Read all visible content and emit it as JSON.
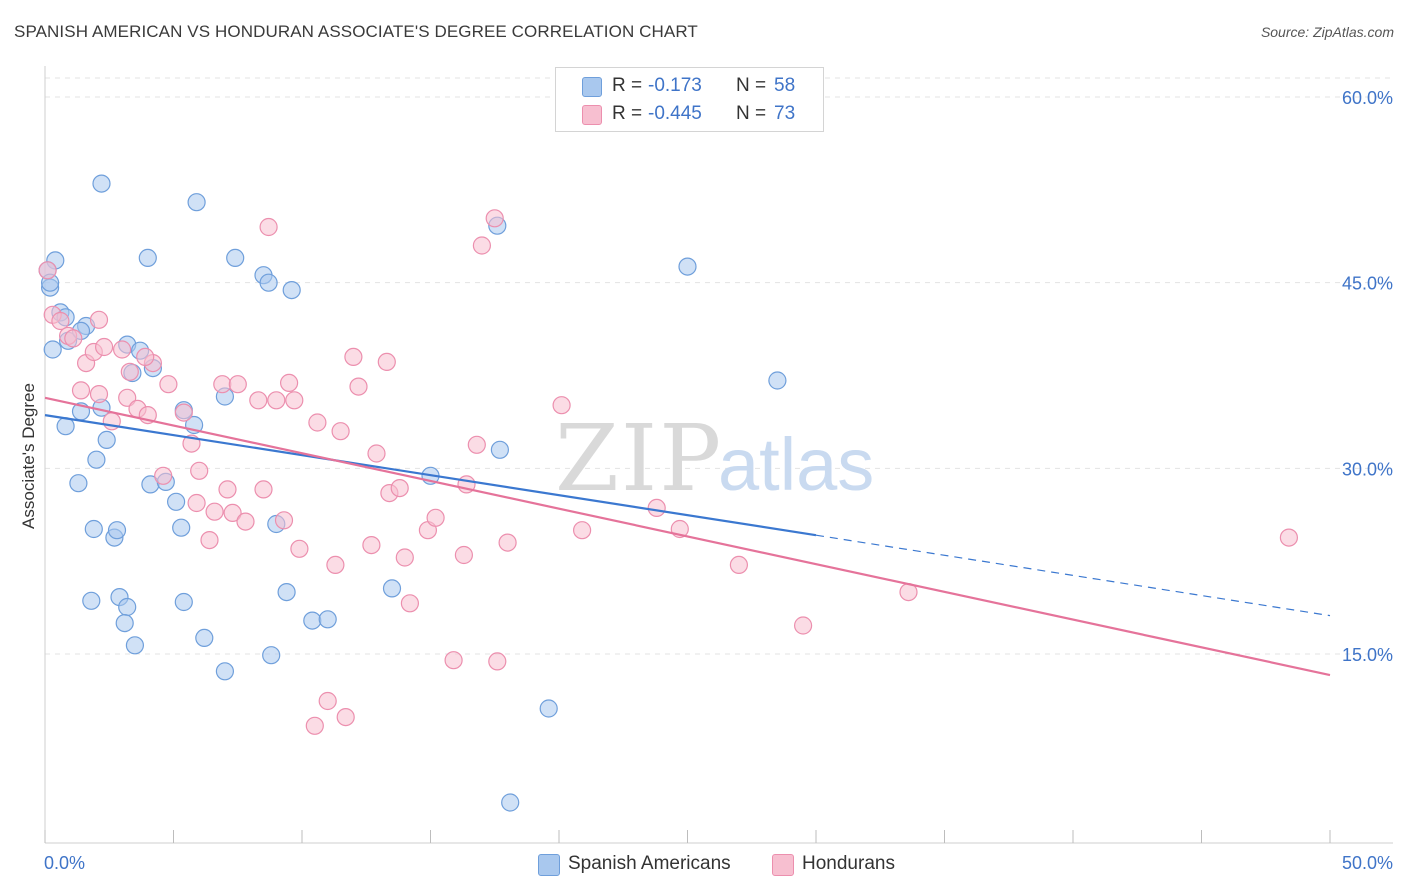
{
  "title": "SPANISH AMERICAN VS HONDURAN ASSOCIATE'S DEGREE CORRELATION CHART",
  "source": "Source: ZipAtlas.com",
  "watermark": {
    "zip": "ZIP",
    "atlas": "atlas"
  },
  "legend": {
    "r_label": "R =",
    "n_label": "N =",
    "rows": [
      {
        "r": "-0.173",
        "n": "58",
        "color": "#a9c8ee",
        "stroke": "#6f9fdb"
      },
      {
        "r": "-0.445",
        "n": "73",
        "color": "#f7bfd0",
        "stroke": "#ec8fae"
      }
    ]
  },
  "bottom_legend": [
    {
      "label": "Spanish Americans",
      "color": "#a9c8ee",
      "stroke": "#6f9fdb"
    },
    {
      "label": "Hondurans",
      "color": "#f7bfd0",
      "stroke": "#ec8fae"
    }
  ],
  "colors": {
    "blue_line": "#3b78d0",
    "pink_line": "#e5739a",
    "axis_text": "#3f74c8",
    "grid": "#e3e3e3"
  },
  "chart_data": {
    "type": "scatter",
    "title": "SPANISH AMERICAN VS HONDURAN ASSOCIATE'S DEGREE CORRELATION CHART",
    "xlabel": "",
    "ylabel": "Associate's Degree",
    "xlim": [
      0,
      50
    ],
    "ylim": [
      0,
      63
    ],
    "x_tick_labels": [
      "0.0%",
      "50.0%"
    ],
    "y_ticks": [
      15,
      30,
      45,
      60
    ],
    "y_tick_labels": [
      "15.0%",
      "30.0%",
      "45.0%",
      "60.0%"
    ],
    "grid": true,
    "legend_position": "top-center",
    "series": [
      {
        "name": "Spanish Americans",
        "color": "#a9c8ee",
        "points": [
          [
            0.2,
            44.6
          ],
          [
            0.4,
            46.8
          ],
          [
            0.3,
            39.6
          ],
          [
            0.6,
            42.6
          ],
          [
            0.8,
            42.2
          ],
          [
            0.9,
            40.3
          ],
          [
            1.6,
            41.5
          ],
          [
            1.4,
            41.1
          ],
          [
            0.8,
            33.4
          ],
          [
            1.4,
            34.6
          ],
          [
            2.2,
            34.9
          ],
          [
            2.4,
            32.3
          ],
          [
            2.0,
            30.7
          ],
          [
            1.3,
            28.8
          ],
          [
            1.9,
            25.1
          ],
          [
            2.7,
            24.4
          ],
          [
            2.8,
            25.0
          ],
          [
            1.8,
            19.3
          ],
          [
            2.9,
            19.6
          ],
          [
            3.2,
            18.8
          ],
          [
            3.1,
            17.5
          ],
          [
            3.5,
            15.7
          ],
          [
            2.2,
            53.0
          ],
          [
            4.0,
            47.0
          ],
          [
            5.9,
            51.5
          ],
          [
            7.4,
            47.0
          ],
          [
            8.5,
            45.6
          ],
          [
            8.7,
            45.0
          ],
          [
            9.6,
            44.4
          ],
          [
            3.2,
            40.0
          ],
          [
            3.7,
            39.5
          ],
          [
            3.4,
            37.7
          ],
          [
            4.2,
            38.1
          ],
          [
            7.0,
            35.8
          ],
          [
            5.4,
            34.7
          ],
          [
            5.8,
            33.5
          ],
          [
            4.1,
            28.7
          ],
          [
            4.7,
            28.9
          ],
          [
            5.1,
            27.3
          ],
          [
            5.3,
            25.2
          ],
          [
            5.4,
            19.2
          ],
          [
            6.2,
            16.3
          ],
          [
            7.0,
            13.6
          ],
          [
            9.0,
            25.5
          ],
          [
            9.4,
            20.0
          ],
          [
            8.8,
            14.9
          ],
          [
            10.4,
            17.7
          ],
          [
            11.0,
            17.8
          ],
          [
            13.5,
            20.3
          ],
          [
            15.0,
            29.4
          ],
          [
            17.6,
            49.6
          ],
          [
            17.7,
            31.5
          ],
          [
            18.1,
            3.0
          ],
          [
            19.6,
            10.6
          ],
          [
            25.0,
            46.3
          ],
          [
            28.5,
            37.1
          ],
          [
            0.1,
            46.0
          ],
          [
            0.2,
            45.0
          ]
        ]
      },
      {
        "name": "Hondurans",
        "color": "#f7bfd0",
        "points": [
          [
            0.1,
            46.0
          ],
          [
            0.3,
            42.4
          ],
          [
            0.6,
            41.9
          ],
          [
            0.9,
            40.7
          ],
          [
            1.6,
            38.5
          ],
          [
            1.9,
            39.4
          ],
          [
            2.3,
            39.8
          ],
          [
            1.4,
            36.3
          ],
          [
            2.1,
            36.0
          ],
          [
            2.6,
            33.8
          ],
          [
            3.0,
            39.6
          ],
          [
            3.3,
            37.8
          ],
          [
            3.2,
            35.7
          ],
          [
            3.6,
            34.8
          ],
          [
            4.0,
            34.3
          ],
          [
            4.2,
            38.5
          ],
          [
            4.8,
            36.8
          ],
          [
            5.4,
            34.5
          ],
          [
            5.7,
            32.0
          ],
          [
            4.6,
            29.4
          ],
          [
            5.9,
            27.2
          ],
          [
            6.0,
            29.8
          ],
          [
            6.4,
            24.2
          ],
          [
            6.6,
            26.5
          ],
          [
            6.9,
            36.8
          ],
          [
            7.1,
            28.3
          ],
          [
            7.3,
            26.4
          ],
          [
            7.8,
            25.7
          ],
          [
            8.3,
            35.5
          ],
          [
            8.5,
            28.3
          ],
          [
            8.7,
            49.5
          ],
          [
            9.0,
            35.5
          ],
          [
            9.3,
            25.8
          ],
          [
            9.5,
            36.9
          ],
          [
            9.7,
            35.5
          ],
          [
            9.9,
            23.5
          ],
          [
            10.6,
            33.7
          ],
          [
            11.0,
            11.2
          ],
          [
            10.5,
            9.2
          ],
          [
            11.3,
            22.2
          ],
          [
            11.5,
            33.0
          ],
          [
            11.7,
            9.9
          ],
          [
            12.0,
            39.0
          ],
          [
            12.2,
            36.6
          ],
          [
            12.7,
            23.8
          ],
          [
            12.9,
            31.2
          ],
          [
            13.3,
            38.6
          ],
          [
            13.4,
            28.0
          ],
          [
            13.8,
            28.4
          ],
          [
            14.0,
            22.8
          ],
          [
            14.2,
            19.1
          ],
          [
            14.9,
            25.0
          ],
          [
            15.2,
            26.0
          ],
          [
            15.9,
            14.5
          ],
          [
            16.3,
            23.0
          ],
          [
            16.4,
            28.7
          ],
          [
            16.8,
            31.9
          ],
          [
            17.0,
            48.0
          ],
          [
            17.5,
            50.2
          ],
          [
            17.6,
            14.4
          ],
          [
            18.0,
            24.0
          ],
          [
            20.1,
            35.1
          ],
          [
            20.9,
            25.0
          ],
          [
            23.8,
            26.8
          ],
          [
            24.7,
            25.1
          ],
          [
            27.0,
            22.2
          ],
          [
            29.5,
            17.3
          ],
          [
            33.6,
            20.0
          ],
          [
            48.4,
            24.4
          ],
          [
            2.1,
            42.0
          ],
          [
            1.1,
            40.5
          ],
          [
            3.9,
            39.0
          ],
          [
            7.5,
            36.8
          ]
        ]
      }
    ],
    "trend_lines": [
      {
        "series": "Spanish Americans",
        "x": [
          0,
          30
        ],
        "y": [
          34.3,
          24.6
        ],
        "dashed_extension": {
          "x": [
            30,
            50
          ],
          "y": [
            24.6,
            18.1
          ]
        }
      },
      {
        "series": "Hondurans",
        "x": [
          0,
          50
        ],
        "y": [
          35.7,
          13.3
        ]
      }
    ]
  }
}
